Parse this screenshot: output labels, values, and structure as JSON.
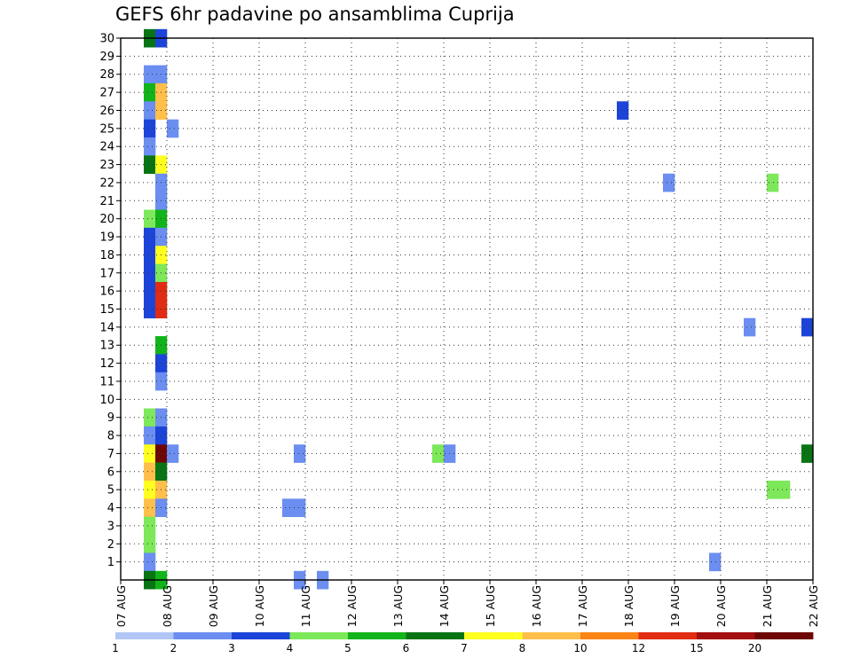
{
  "chart_data": {
    "type": "heatmap",
    "title": "GEFS 6hr padavine po ansamblima Cuprija",
    "xlabel": "",
    "ylabel": "",
    "x_tick_labels": [
      "07 AUG",
      "08 AUG",
      "09 AUG",
      "10 AUG",
      "11 AUG",
      "12 AUG",
      "13 AUG",
      "14 AUG",
      "15 AUG",
      "16 AUG",
      "17 AUG",
      "18 AUG",
      "19 AUG",
      "20 AUG",
      "21 AUG",
      "22 AUG"
    ],
    "y_tick_labels": [
      "1",
      "2",
      "3",
      "4",
      "5",
      "6",
      "7",
      "8",
      "9",
      "10",
      "11",
      "12",
      "13",
      "14",
      "15",
      "16",
      "17",
      "18",
      "19",
      "20",
      "21",
      "22",
      "23",
      "24",
      "25",
      "26",
      "27",
      "28",
      "29",
      "30"
    ],
    "y_range": [
      0,
      30
    ],
    "x_step_hours": 6,
    "x_range_steps": [
      0,
      60
    ],
    "grid": true,
    "colorbar": {
      "position": "bottom",
      "labels": [
        "1",
        "2",
        "3",
        "4",
        "5",
        "6",
        "7",
        "8",
        "10",
        "12",
        "15",
        "20"
      ],
      "colors": [
        "#b2c6f5",
        "#6b8ef0",
        "#1d44d8",
        "#7de85a",
        "#12b41b",
        "#087414",
        "#ffff20",
        "#ffbf4a",
        "#fb8414",
        "#e02c12",
        "#a40e0e",
        "#6e0606"
      ]
    },
    "cells": [
      {
        "step": 2,
        "member": 30,
        "level": 5
      },
      {
        "step": 3,
        "member": 30,
        "level": 2
      },
      {
        "step": 2,
        "member": 28,
        "level": 1
      },
      {
        "step": 3,
        "member": 28,
        "level": 1
      },
      {
        "step": 2,
        "member": 27,
        "level": 4
      },
      {
        "step": 3,
        "member": 27,
        "level": 7
      },
      {
        "step": 2,
        "member": 26,
        "level": 1
      },
      {
        "step": 3,
        "member": 26,
        "level": 7
      },
      {
        "step": 2,
        "member": 25,
        "level": 2
      },
      {
        "step": 4,
        "member": 25,
        "level": 1
      },
      {
        "step": 2,
        "member": 24,
        "level": 1
      },
      {
        "step": 2,
        "member": 23,
        "level": 5
      },
      {
        "step": 3,
        "member": 23,
        "level": 6
      },
      {
        "step": 3,
        "member": 22,
        "level": 1
      },
      {
        "step": 3,
        "member": 21,
        "level": 1
      },
      {
        "step": 2,
        "member": 20,
        "level": 3
      },
      {
        "step": 3,
        "member": 20,
        "level": 4
      },
      {
        "step": 2,
        "member": 19,
        "level": 2
      },
      {
        "step": 3,
        "member": 19,
        "level": 1
      },
      {
        "step": 2,
        "member": 18,
        "level": 2
      },
      {
        "step": 3,
        "member": 18,
        "level": 6
      },
      {
        "step": 2,
        "member": 17,
        "level": 2
      },
      {
        "step": 3,
        "member": 17,
        "level": 3
      },
      {
        "step": 2,
        "member": 16,
        "level": 2
      },
      {
        "step": 3,
        "member": 16,
        "level": 9
      },
      {
        "step": 2,
        "member": 15,
        "level": 2
      },
      {
        "step": 3,
        "member": 15,
        "level": 9
      },
      {
        "step": 3,
        "member": 13,
        "level": 4
      },
      {
        "step": 3,
        "member": 12,
        "level": 2
      },
      {
        "step": 3,
        "member": 11,
        "level": 1
      },
      {
        "step": 2,
        "member": 9,
        "level": 3
      },
      {
        "step": 3,
        "member": 9,
        "level": 1
      },
      {
        "step": 2,
        "member": 8,
        "level": 1
      },
      {
        "step": 3,
        "member": 8,
        "level": 2
      },
      {
        "step": 2,
        "member": 7,
        "level": 6
      },
      {
        "step": 3,
        "member": 7,
        "level": 11
      },
      {
        "step": 4,
        "member": 7,
        "level": 1
      },
      {
        "step": 2,
        "member": 6,
        "level": 7
      },
      {
        "step": 3,
        "member": 6,
        "level": 5
      },
      {
        "step": 2,
        "member": 5,
        "level": 6
      },
      {
        "step": 3,
        "member": 5,
        "level": 7
      },
      {
        "step": 2,
        "member": 4,
        "level": 7
      },
      {
        "step": 3,
        "member": 4,
        "level": 1
      },
      {
        "step": 2,
        "member": 3,
        "level": 3
      },
      {
        "step": 2,
        "member": 2,
        "level": 3
      },
      {
        "step": 2,
        "member": 1,
        "level": 1
      },
      {
        "step": 2,
        "member": 0,
        "level": 5
      },
      {
        "step": 3,
        "member": 0,
        "level": 4
      },
      {
        "step": 14,
        "member": 4,
        "level": 1
      },
      {
        "step": 15,
        "member": 4,
        "level": 1
      },
      {
        "step": 15,
        "member": 7,
        "level": 1
      },
      {
        "step": 15,
        "member": 0,
        "level": 1
      },
      {
        "step": 17,
        "member": 0,
        "level": 1
      },
      {
        "step": 27,
        "member": 7,
        "level": 3
      },
      {
        "step": 28,
        "member": 7,
        "level": 1
      },
      {
        "step": 43,
        "member": 26,
        "level": 2
      },
      {
        "step": 47,
        "member": 22,
        "level": 1
      },
      {
        "step": 51,
        "member": 1,
        "level": 1
      },
      {
        "step": 54,
        "member": 14,
        "level": 1
      },
      {
        "step": 56,
        "member": 22,
        "level": 3
      },
      {
        "step": 56,
        "member": 5,
        "level": 3
      },
      {
        "step": 57,
        "member": 5,
        "level": 3
      },
      {
        "step": 59,
        "member": 14,
        "level": 2
      },
      {
        "step": 59,
        "member": 7,
        "level": 5
      }
    ]
  }
}
